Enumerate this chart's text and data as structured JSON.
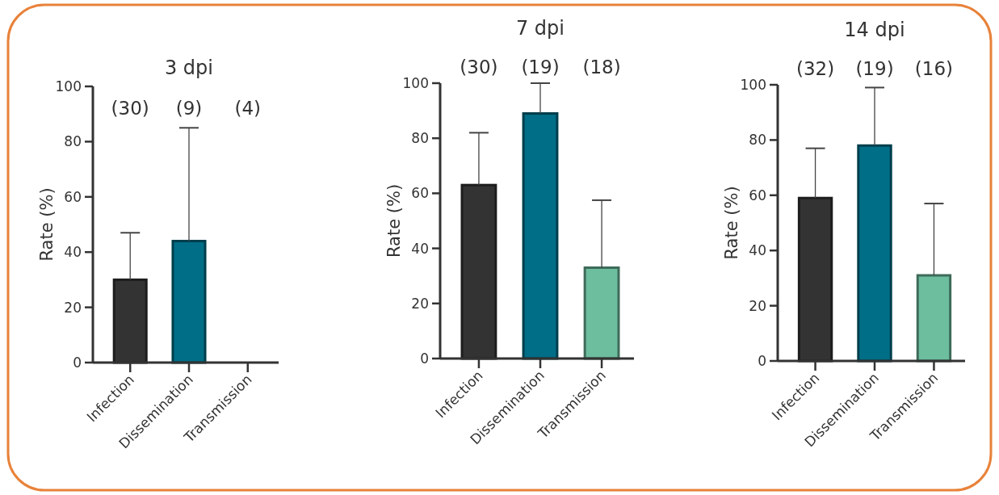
{
  "chart_data": [
    {
      "type": "bar",
      "title": "3 dpi",
      "ylabel": "Rate (%)",
      "categories": [
        "Infection",
        "Dissemination",
        "Transmission"
      ],
      "values": [
        30,
        44,
        0
      ],
      "colors": [
        "#333333",
        "#006e87",
        "#6dbd9f"
      ],
      "errors": [
        [
          30,
          47
        ],
        [
          44,
          85
        ],
        null
      ],
      "ylim": [
        0,
        100
      ],
      "yticks": [
        0,
        20,
        40,
        60,
        80,
        100
      ],
      "annotations": [
        "(30)",
        "(9)",
        "(4)"
      ]
    },
    {
      "type": "bar",
      "title": "7 dpi",
      "ylabel": "Rate (%)",
      "categories": [
        "Infection",
        "Dissemination",
        "Transmission"
      ],
      "values": [
        63,
        89,
        33
      ],
      "colors": [
        "#333333",
        "#006e87",
        "#6dbd9f"
      ],
      "errors": [
        [
          63,
          82
        ],
        [
          89,
          100
        ],
        [
          33,
          57.5
        ]
      ],
      "ylim": [
        0,
        100
      ],
      "yticks": [
        0,
        20,
        40,
        60,
        80,
        100
      ],
      "annotations": [
        "(30)",
        "(19)",
        "(18)"
      ]
    },
    {
      "type": "bar",
      "title": "14 dpi",
      "ylabel": "Rate (%)",
      "categories": [
        "Infection",
        "Dissemination",
        "Transmission"
      ],
      "values": [
        59,
        78,
        31
      ],
      "colors": [
        "#333333",
        "#006e87",
        "#6dbd9f"
      ],
      "errors": [
        [
          59,
          77
        ],
        [
          78,
          99
        ],
        [
          31,
          57
        ]
      ],
      "ylim": [
        0,
        100
      ],
      "yticks": [
        0,
        20,
        40,
        60,
        80,
        100
      ],
      "annotations": [
        "(32)",
        "(19)",
        "(16)"
      ]
    }
  ]
}
